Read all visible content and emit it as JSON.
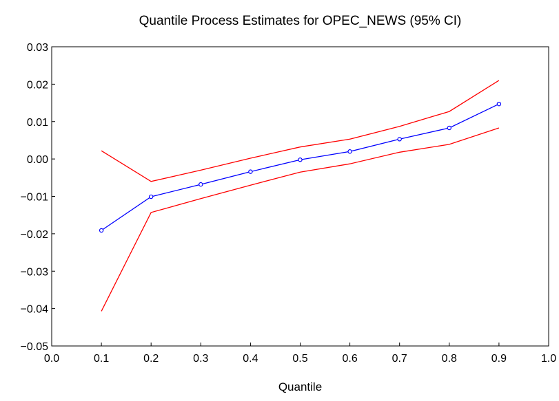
{
  "chart_data": {
    "type": "line",
    "title": "Quantile Process Estimates for OPEC_NEWS (95% CI)",
    "xlabel": "Quantile",
    "ylabel": "",
    "xlim": [
      0.0,
      1.0
    ],
    "ylim": [
      -0.05,
      0.03
    ],
    "x_ticks": [
      "0.0",
      "0.1",
      "0.2",
      "0.3",
      "0.4",
      "0.5",
      "0.6",
      "0.7",
      "0.8",
      "0.9",
      "1.0"
    ],
    "y_ticks": [
      "0.03",
      "0.02",
      "0.01",
      "0.00",
      "−0.01",
      "−0.02",
      "−0.03",
      "−0.04",
      "−0.05"
    ],
    "x": [
      0.1,
      0.2,
      0.3,
      0.4,
      0.5,
      0.6,
      0.7,
      0.8,
      0.9
    ],
    "series": [
      {
        "role": "estimate",
        "color": "#0000ff",
        "markers": true,
        "values": [
          -0.0191,
          -0.0101,
          -0.0068,
          -0.0034,
          -0.0002,
          0.002,
          0.0053,
          0.0083,
          0.0147
        ]
      },
      {
        "role": "upper",
        "color": "#ff0000",
        "markers": false,
        "values": [
          0.0022,
          -0.006,
          -0.003,
          0.0002,
          0.0032,
          0.0053,
          0.0087,
          0.0127,
          0.021
        ]
      },
      {
        "role": "lower",
        "color": "#ff0000",
        "markers": false,
        "values": [
          -0.0407,
          -0.0143,
          -0.0106,
          -0.007,
          -0.0035,
          -0.0013,
          0.0018,
          0.0039,
          0.0083
        ]
      }
    ],
    "grid": false,
    "legend": "none"
  }
}
